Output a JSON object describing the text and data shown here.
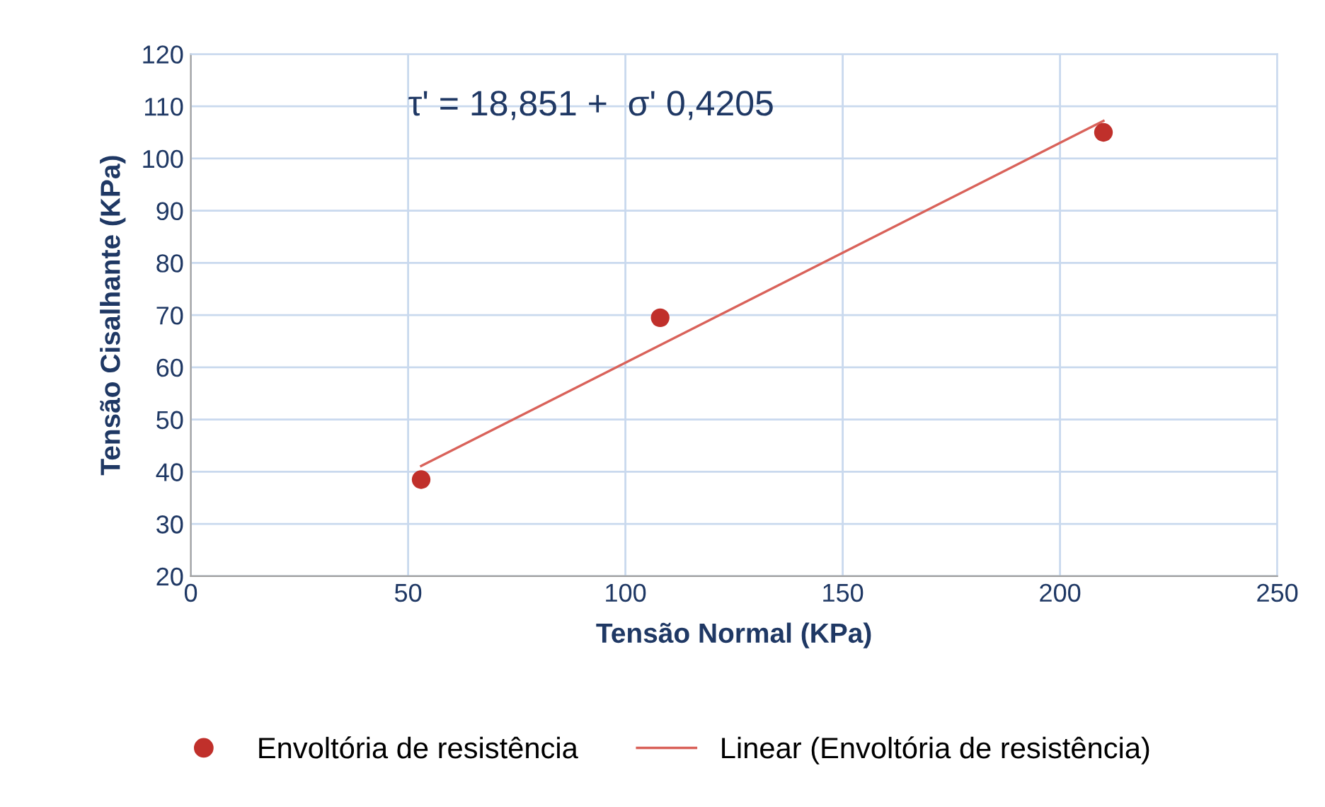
{
  "chart_data": {
    "type": "scatter",
    "xlabel": "Tensão Normal (KPa)",
    "ylabel": "Tensão Cisalhante (KPa)",
    "annotations": [
      "τ' = 18,851 +  σ' 0,4205"
    ],
    "series": [
      {
        "name": "Envoltória de resistência",
        "color": "#c0302b",
        "x": [
          53,
          108,
          210
        ],
        "values": [
          38.5,
          69.5,
          105
        ],
        "marker": "circle"
      },
      {
        "name": "Linear (Envoltória de resistência)",
        "type": "line",
        "color": "#d9625a",
        "x": [
          53,
          210
        ],
        "values": [
          41.1,
          107.2
        ],
        "marker": "none",
        "line_style": "solid"
      }
    ],
    "xlim": [
      0,
      250
    ],
    "xticks": [
      0,
      50,
      100,
      150,
      200,
      250
    ],
    "ylim": [
      20,
      120
    ],
    "yticks": [
      20,
      30,
      40,
      50,
      60,
      70,
      80,
      90,
      100,
      110,
      120
    ],
    "grid": true,
    "legend": "bottom"
  }
}
